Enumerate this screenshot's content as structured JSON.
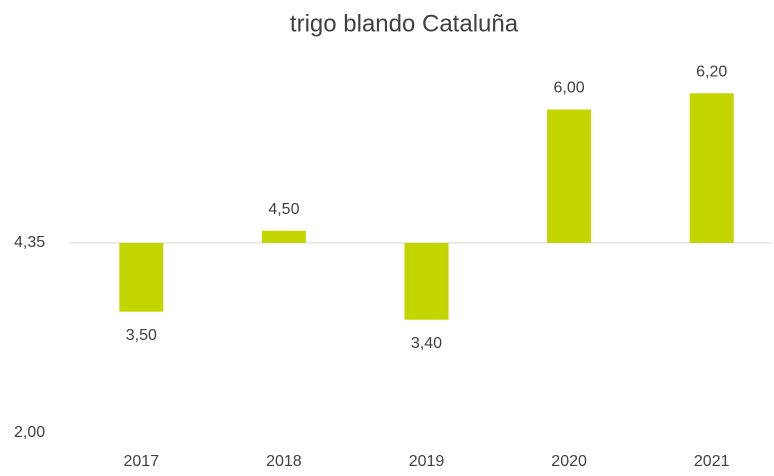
{
  "chart_data": {
    "type": "bar",
    "title": "trigo blando Cataluña",
    "categories": [
      "2017",
      "2018",
      "2019",
      "2020",
      "2021"
    ],
    "values": [
      3.5,
      4.5,
      3.4,
      6.0,
      6.2
    ],
    "value_labels": [
      "3,50",
      "4,50",
      "3,40",
      "6,00",
      "6,20"
    ],
    "color": "#c3d600",
    "ylim": [
      2,
      6.5
    ],
    "yticks": [
      {
        "value": 2,
        "label": "2,00"
      },
      {
        "value": 4.35,
        "label": "4,35"
      }
    ],
    "x_axis_at": 4.35
  }
}
